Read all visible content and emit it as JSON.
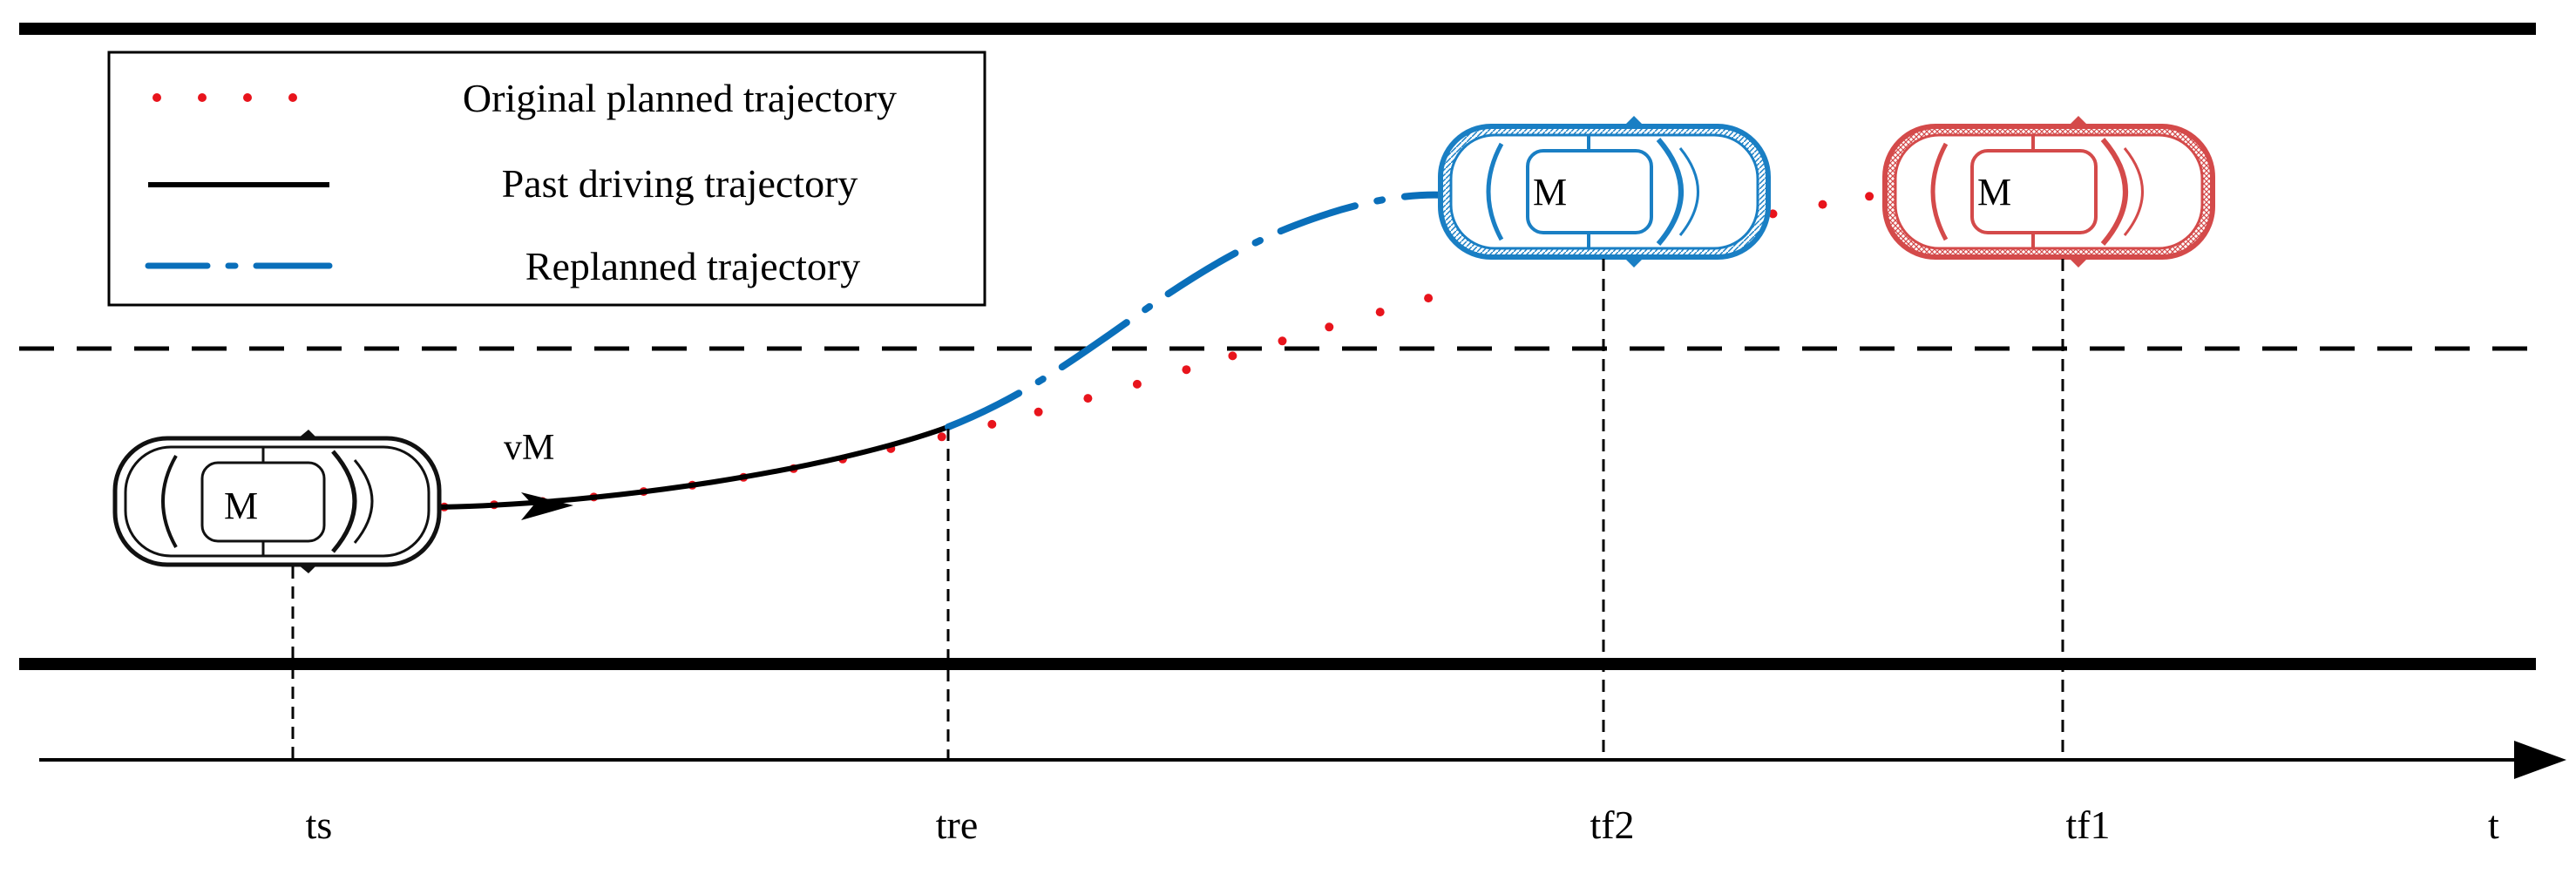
{
  "legend": {
    "items": [
      {
        "label": "Original planned trajectory",
        "style": "dotted",
        "color": "#e8141c"
      },
      {
        "label": "Past driving trajectory",
        "style": "solid",
        "color": "#000000"
      },
      {
        "label": "Replanned trajectory",
        "style": "dash-dot",
        "color": "#0a6fba"
      }
    ]
  },
  "vehicles": [
    {
      "label": "M",
      "state": "start",
      "color": "#111111"
    },
    {
      "label": "M",
      "state": "replanned-final",
      "color": "#1a7fc4"
    },
    {
      "label": "M",
      "state": "original-final",
      "color": "#d44a4a"
    }
  ],
  "velocity_label": "vM",
  "time_axis": {
    "label": "t",
    "ticks": [
      "ts",
      "tre",
      "tf2",
      "tf1"
    ]
  },
  "colors": {
    "road_line": "#000000",
    "original": "#e8141c",
    "past": "#000000",
    "replanned": "#0a6fba"
  }
}
